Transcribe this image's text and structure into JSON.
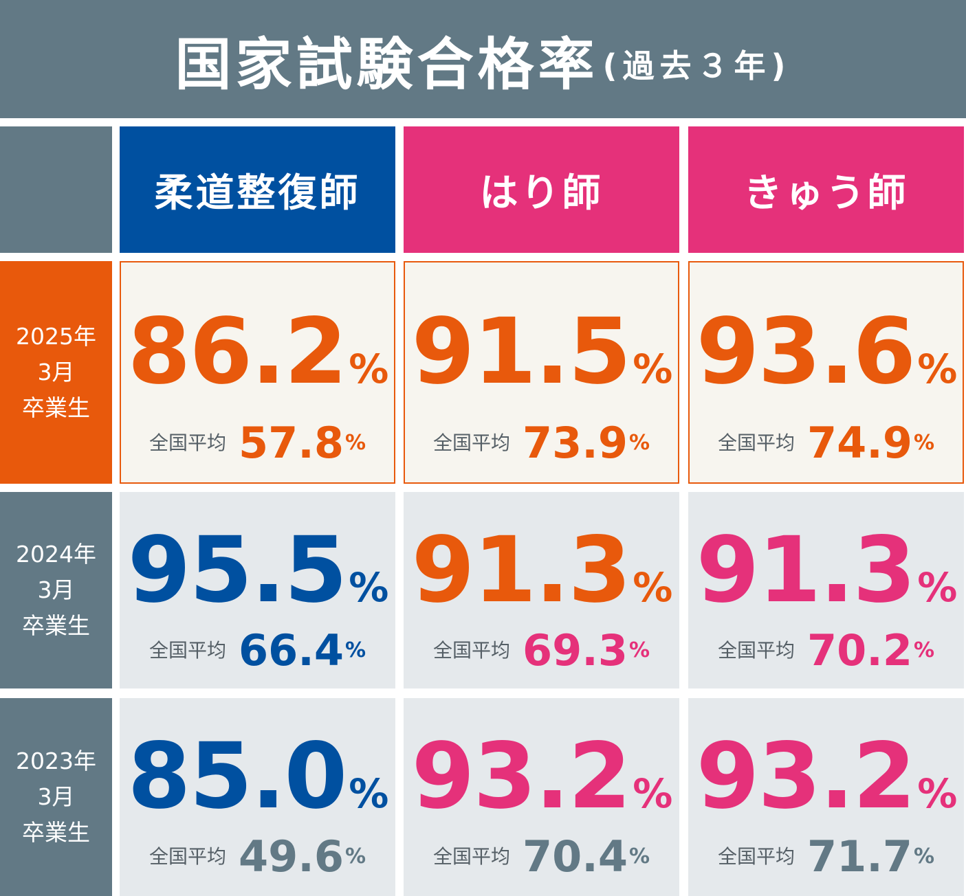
{
  "title": {
    "main": "国家試験合格率",
    "sub": "(過去３年)"
  },
  "columns": [
    {
      "label": "柔道整復師",
      "color": "#0050a0"
    },
    {
      "label": "はり師",
      "color": "#e5317a"
    },
    {
      "label": "きゅう師",
      "color": "#e5317a"
    }
  ],
  "rows": [
    {
      "label": [
        "2025年",
        "3月",
        "卒業生"
      ],
      "label_bg": "#e8590c",
      "cells": [
        {
          "rate": "86.2",
          "avg_label": "全国平均",
          "avg": "57.8",
          "rate_color": "#e8590c",
          "avg_color": "#e8590c"
        },
        {
          "rate": "91.5",
          "avg_label": "全国平均",
          "avg": "73.9",
          "rate_color": "#e8590c",
          "avg_color": "#e8590c"
        },
        {
          "rate": "93.6",
          "avg_label": "全国平均",
          "avg": "74.9",
          "rate_color": "#e8590c",
          "avg_color": "#e8590c"
        }
      ]
    },
    {
      "label": [
        "2024年",
        "3月",
        "卒業生"
      ],
      "label_bg": "#627985",
      "cells": [
        {
          "rate": "95.5",
          "avg_label": "全国平均",
          "avg": "66.4",
          "rate_color": "#0050a0",
          "avg_color": "#0050a0"
        },
        {
          "rate": "91.3",
          "avg_label": "全国平均",
          "avg": "69.3",
          "rate_color": "#e8590c",
          "avg_color": "#e5317a"
        },
        {
          "rate": "91.3",
          "avg_label": "全国平均",
          "avg": "70.2",
          "rate_color": "#e5317a",
          "avg_color": "#e5317a"
        }
      ]
    },
    {
      "label": [
        "2023年",
        "3月",
        "卒業生"
      ],
      "label_bg": "#627985",
      "cells": [
        {
          "rate": "85.0",
          "avg_label": "全国平均",
          "avg": "49.6",
          "rate_color": "#0050a0",
          "avg_color": "#627985"
        },
        {
          "rate": "93.2",
          "avg_label": "全国平均",
          "avg": "70.4",
          "rate_color": "#e5317a",
          "avg_color": "#627985"
        },
        {
          "rate": "93.2",
          "avg_label": "全国平均",
          "avg": "71.7",
          "rate_color": "#e5317a",
          "avg_color": "#627985"
        }
      ]
    }
  ],
  "percent_sign": "%"
}
